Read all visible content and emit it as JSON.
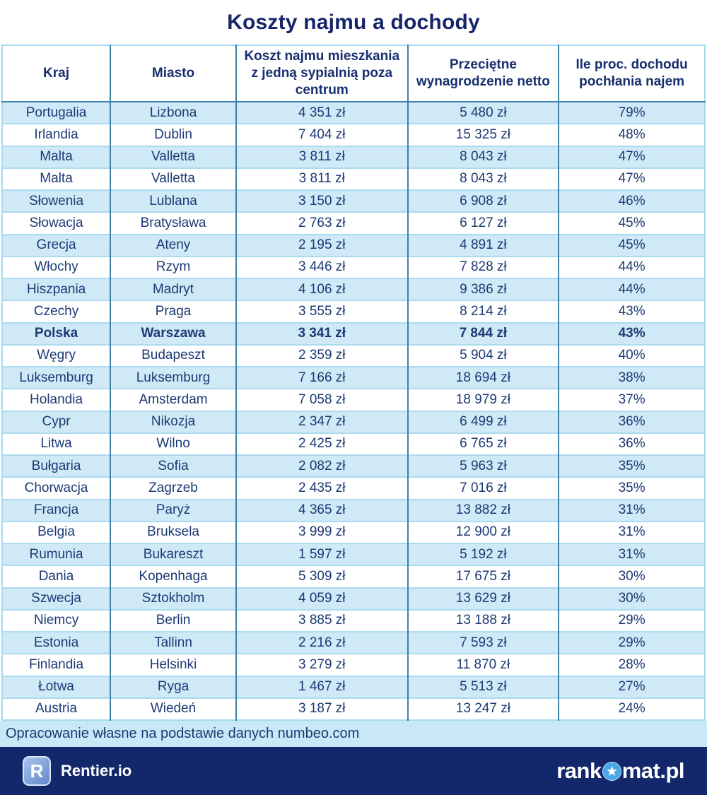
{
  "title": "Koszty najmu a dochody",
  "table": {
    "headers": [
      "Kraj",
      "Miasto",
      "Koszt najmu mieszkania z jedną sypialnią poza centrum",
      "Przeciętne wynagrodzenie netto",
      "Ile proc. dochodu pochłania najem"
    ],
    "rows": [
      {
        "country": "Portugalia",
        "city": "Lizbona",
        "rent": "4 351 zł",
        "salary": "5 480 zł",
        "share": "79%",
        "highlight": false
      },
      {
        "country": "Irlandia",
        "city": "Dublin",
        "rent": "7 404 zł",
        "salary": "15 325 zł",
        "share": "48%",
        "highlight": false
      },
      {
        "country": "Malta",
        "city": "Valletta",
        "rent": "3 811 zł",
        "salary": "8 043 zł",
        "share": "47%",
        "highlight": false
      },
      {
        "country": "Malta",
        "city": "Valletta",
        "rent": "3 811 zł",
        "salary": "8 043 zł",
        "share": "47%",
        "highlight": false
      },
      {
        "country": "Słowenia",
        "city": "Lublana",
        "rent": "3 150 zł",
        "salary": "6 908 zł",
        "share": "46%",
        "highlight": false
      },
      {
        "country": "Słowacja",
        "city": "Bratysława",
        "rent": "2 763 zł",
        "salary": "6 127 zł",
        "share": "45%",
        "highlight": false
      },
      {
        "country": "Grecja",
        "city": "Ateny",
        "rent": "2 195 zł",
        "salary": "4 891 zł",
        "share": "45%",
        "highlight": false
      },
      {
        "country": "Włochy",
        "city": "Rzym",
        "rent": "3 446 zł",
        "salary": "7 828 zł",
        "share": "44%",
        "highlight": false
      },
      {
        "country": "Hiszpania",
        "city": "Madryt",
        "rent": "4 106 zł",
        "salary": "9 386 zł",
        "share": "44%",
        "highlight": false
      },
      {
        "country": "Czechy",
        "city": "Praga",
        "rent": "3 555 zł",
        "salary": "8 214 zł",
        "share": "43%",
        "highlight": false
      },
      {
        "country": "Polska",
        "city": "Warszawa",
        "rent": "3 341 zł",
        "salary": "7 844 zł",
        "share": "43%",
        "highlight": true
      },
      {
        "country": "Węgry",
        "city": "Budapeszt",
        "rent": "2 359 zł",
        "salary": "5 904 zł",
        "share": "40%",
        "highlight": false
      },
      {
        "country": "Luksemburg",
        "city": "Luksemburg",
        "rent": "7 166 zł",
        "salary": "18 694 zł",
        "share": "38%",
        "highlight": false
      },
      {
        "country": "Holandia",
        "city": "Amsterdam",
        "rent": "7 058 zł",
        "salary": "18 979 zł",
        "share": "37%",
        "highlight": false
      },
      {
        "country": "Cypr",
        "city": "Nikozja",
        "rent": "2 347 zł",
        "salary": "6 499 zł",
        "share": "36%",
        "highlight": false
      },
      {
        "country": "Litwa",
        "city": "Wilno",
        "rent": "2 425 zł",
        "salary": "6 765 zł",
        "share": "36%",
        "highlight": false
      },
      {
        "country": "Bułgaria",
        "city": "Sofia",
        "rent": "2 082 zł",
        "salary": "5 963 zł",
        "share": "35%",
        "highlight": false
      },
      {
        "country": "Chorwacja",
        "city": "Zagrzeb",
        "rent": "2 435 zł",
        "salary": "7 016 zł",
        "share": "35%",
        "highlight": false
      },
      {
        "country": "Francja",
        "city": "Paryż",
        "rent": "4 365 zł",
        "salary": "13 882 zł",
        "share": "31%",
        "highlight": false
      },
      {
        "country": "Belgia",
        "city": "Bruksela",
        "rent": "3 999 zł",
        "salary": "12 900 zł",
        "share": "31%",
        "highlight": false
      },
      {
        "country": "Rumunia",
        "city": "Bukareszt",
        "rent": "1 597 zł",
        "salary": "5 192 zł",
        "share": "31%",
        "highlight": false
      },
      {
        "country": "Dania",
        "city": "Kopenhaga",
        "rent": "5 309 zł",
        "salary": "17 675 zł",
        "share": "30%",
        "highlight": false
      },
      {
        "country": "Szwecja",
        "city": "Sztokholm",
        "rent": "4 059 zł",
        "salary": "13 629 zł",
        "share": "30%",
        "highlight": false
      },
      {
        "country": "Niemcy",
        "city": "Berlin",
        "rent": "3 885 zł",
        "salary": "13 188 zł",
        "share": "29%",
        "highlight": false
      },
      {
        "country": "Estonia",
        "city": "Tallinn",
        "rent": "2 216 zł",
        "salary": "7 593 zł",
        "share": "29%",
        "highlight": false
      },
      {
        "country": "Finlandia",
        "city": "Helsinki",
        "rent": "3 279 zł",
        "salary": "11 870 zł",
        "share": "28%",
        "highlight": false
      },
      {
        "country": "Łotwa",
        "city": "Ryga",
        "rent": "1 467 zł",
        "salary": "5 513 zł",
        "share": "27%",
        "highlight": false
      },
      {
        "country": "Austria",
        "city": "Wiedeń",
        "rent": "3 187 zł",
        "salary": "13 247 zł",
        "share": "24%",
        "highlight": false
      }
    ]
  },
  "caption": "Opracowanie własne na podstawie danych numbeo.com",
  "footer": {
    "rentier_badge_letter": "R",
    "rentier_label": "Rentier.io",
    "rankomat_prefix": "rank",
    "rankomat_suffix": "mat.pl",
    "rankomat_badge_icon": "star-icon",
    "star_glyph": "★"
  },
  "colors": {
    "title_text": "#16256b",
    "header_text": "#162f6e",
    "cell_text": "#1c3a74",
    "row_blue": "#cfe9f7",
    "row_white": "#ffffff",
    "border_vertical": "#3f81a9",
    "border_horizontal": "#abdbee",
    "caption_bg": "#c8e8f8",
    "footer_bg": "#12286b",
    "rankomat_badge": "#48a7e6"
  },
  "chart_data": {
    "type": "table",
    "title": "Koszty najmu a dochody",
    "columns": [
      "Kraj",
      "Miasto",
      "Koszt najmu mieszkania z jedną sypialnią poza centrum (zł)",
      "Przeciętne wynagrodzenie netto (zł)",
      "Ile proc. dochodu pochłania najem"
    ],
    "rows": [
      [
        "Portugalia",
        "Lizbona",
        4351,
        5480,
        79
      ],
      [
        "Irlandia",
        "Dublin",
        7404,
        15325,
        48
      ],
      [
        "Malta",
        "Valletta",
        3811,
        8043,
        47
      ],
      [
        "Malta",
        "Valletta",
        3811,
        8043,
        47
      ],
      [
        "Słowenia",
        "Lublana",
        3150,
        6908,
        46
      ],
      [
        "Słowacja",
        "Bratysława",
        2763,
        6127,
        45
      ],
      [
        "Grecja",
        "Ateny",
        2195,
        4891,
        45
      ],
      [
        "Włochy",
        "Rzym",
        3446,
        7828,
        44
      ],
      [
        "Hiszpania",
        "Madryt",
        4106,
        9386,
        44
      ],
      [
        "Czechy",
        "Praga",
        3555,
        8214,
        43
      ],
      [
        "Polska",
        "Warszawa",
        3341,
        7844,
        43
      ],
      [
        "Węgry",
        "Budapeszt",
        2359,
        5904,
        40
      ],
      [
        "Luksemburg",
        "Luksemburg",
        7166,
        18694,
        38
      ],
      [
        "Holandia",
        "Amsterdam",
        7058,
        18979,
        37
      ],
      [
        "Cypr",
        "Nikozja",
        2347,
        6499,
        36
      ],
      [
        "Litwa",
        "Wilno",
        2425,
        6765,
        36
      ],
      [
        "Bułgaria",
        "Sofia",
        2082,
        5963,
        35
      ],
      [
        "Chorwacja",
        "Zagrzeb",
        2435,
        7016,
        35
      ],
      [
        "Francja",
        "Paryż",
        4365,
        13882,
        31
      ],
      [
        "Belgia",
        "Bruksela",
        3999,
        12900,
        31
      ],
      [
        "Rumunia",
        "Bukareszt",
        1597,
        5192,
        31
      ],
      [
        "Dania",
        "Kopenhaga",
        5309,
        17675,
        30
      ],
      [
        "Szwecja",
        "Sztokholm",
        4059,
        13629,
        30
      ],
      [
        "Niemcy",
        "Berlin",
        3885,
        13188,
        29
      ],
      [
        "Estonia",
        "Tallinn",
        2216,
        7593,
        29
      ],
      [
        "Finlandia",
        "Helsinki",
        3279,
        11870,
        28
      ],
      [
        "Łotwa",
        "Ryga",
        1467,
        5513,
        27
      ],
      [
        "Austria",
        "Wiedeń",
        3187,
        13247,
        24
      ]
    ],
    "notes": "Row for Polska/Warszawa is emphasized in bold; rows alternate light-blue/white shading"
  }
}
